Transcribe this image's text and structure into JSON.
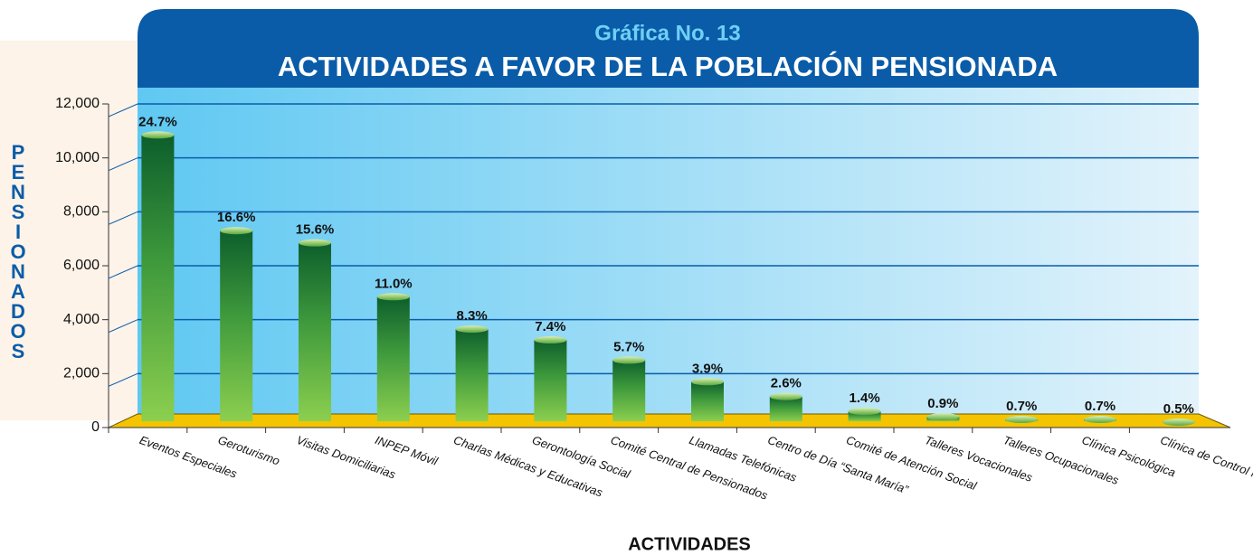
{
  "chart_data": {
    "type": "bar",
    "title": "Gráfica No. 13",
    "subtitle": "ACTIVIDADES A FAVOR DE LA POBLACIÓN PENSIONADA",
    "x_label": "ACTIVIDADES",
    "y_label": "PENSIONADOS",
    "categories": [
      "Eventos Especiales",
      "Geroturismo",
      "Visitas Domiciliarias",
      "INPEP Móvil",
      "Charlas Médicas y Educativas",
      "Gerontología Social",
      "Comité Central de Pensionados",
      "Llamadas Telefónicas",
      "Centro de Día “Santa María”",
      "Comité de Atención Social",
      "Talleres Vocacionales",
      "Talleres Ocupacionales",
      "Clínica Psicológica",
      "Clínica de Control Nutricional"
    ],
    "values": [
      10850,
      7300,
      6850,
      4850,
      3650,
      3250,
      2500,
      1700,
      1150,
      600,
      400,
      300,
      300,
      200
    ],
    "share_labels": [
      "24.7%",
      "16.6%",
      "15.6%",
      "11.0%",
      "8.3%",
      "7.4%",
      "5.7%",
      "3.9%",
      "2.6%",
      "1.4%",
      "0.9%",
      "0.7%",
      "0.7%",
      "0.5%"
    ],
    "color": "#2e8b3a",
    "ylim": [
      0,
      12000
    ],
    "yticks": [
      0,
      {
        "value": 2000,
        "label": "2,000"
      },
      {
        "value": 4000,
        "label": "4,000"
      },
      {
        "value": 6000,
        "label": "6,000"
      },
      {
        "value": 8000,
        "label": "8,000"
      },
      {
        "value": 10000,
        "label": "10,000"
      },
      {
        "value": 12000,
        "label": "12,000"
      }
    ],
    "grid": true
  }
}
